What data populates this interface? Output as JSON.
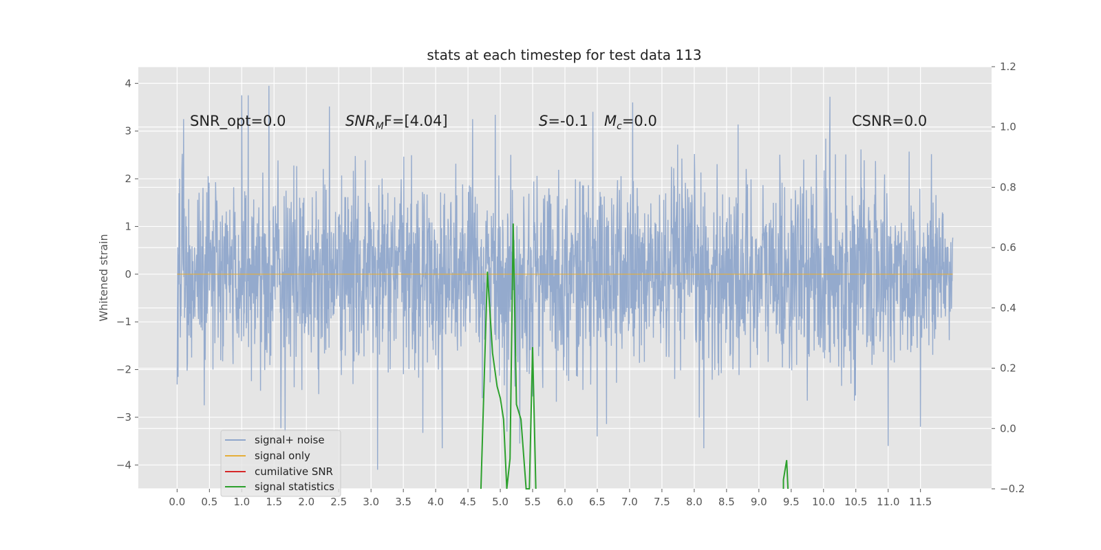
{
  "chart_data": {
    "type": "line",
    "title": "stats at each timestep for test data 113",
    "ylabel": "Whitened strain",
    "xlim": [
      -0.6,
      12.6
    ],
    "ylim": [
      -4.5,
      4.35
    ],
    "y2lim": [
      -0.2,
      1.2
    ],
    "x_ticks": [
      0.0,
      0.5,
      1.0,
      1.5,
      2.0,
      2.5,
      3.0,
      3.5,
      4.0,
      4.5,
      5.0,
      5.5,
      6.0,
      6.5,
      7.0,
      7.5,
      8.0,
      8.5,
      9.0,
      9.5,
      10.0,
      10.5,
      11.0,
      11.5
    ],
    "x_tick_labels": [
      "0.0",
      "0.5",
      "1.0",
      "1.5",
      "2.0",
      "2.5",
      "3.0",
      "3.5",
      "4.0",
      "4.5",
      "5.0",
      "5.5",
      "6.0",
      "6.5",
      "7.0",
      "7.5",
      "8.0",
      "8.5",
      "9.0",
      "9.5",
      "10.0",
      "10.5",
      "11.0",
      "11.5"
    ],
    "y_ticks": [
      -4,
      -3,
      -2,
      -1,
      0,
      1,
      2,
      3,
      4
    ],
    "y_tick_labels": [
      "−4",
      "−3",
      "−2",
      "−1",
      "0",
      "1",
      "2",
      "3",
      "4"
    ],
    "y2_ticks": [
      -0.2,
      0.0,
      0.2,
      0.4,
      0.6,
      0.8,
      1.0,
      1.2
    ],
    "y2_tick_labels": [
      "−0.2",
      "0.0",
      "0.2",
      "0.4",
      "0.6",
      "0.8",
      "1.0",
      "1.2"
    ],
    "grid": true,
    "legend_placement": "lower-left",
    "annotations": {
      "snr_opt": "SNR_opt=0.0",
      "snr_mf_main": "SNR",
      "snr_mf_sub": "M",
      "snr_mf_rest": "F=[4.04]",
      "s_main": "S",
      "s_rest": "=-0.1",
      "mc_main": "M",
      "mc_sub": "c",
      "mc_rest": "=0.0",
      "csnr": "CSNR=0.0"
    },
    "series": [
      {
        "name": "signal+ noise",
        "color": "#8fa6cb",
        "axis": "left",
        "x_range": [
          0.0,
          12.0
        ],
        "n_points": 2400,
        "summary": "whitened noise, approximately Gaussian, mean 0, std ~1, range about -4.1 to 4.0",
        "extreme_points": [
          {
            "x": 0.1,
            "y": 3.25
          },
          {
            "x": 1.0,
            "y": 3.75
          },
          {
            "x": 1.1,
            "y": 3.75
          },
          {
            "x": 1.42,
            "y": 3.95
          },
          {
            "x": 1.67,
            "y": -3.3
          },
          {
            "x": 3.1,
            "y": -4.1
          },
          {
            "x": 4.1,
            "y": -3.65
          },
          {
            "x": 5.3,
            "y": -3.55
          },
          {
            "x": 6.5,
            "y": -3.4
          },
          {
            "x": 7.05,
            "y": 3.6
          },
          {
            "x": 8.15,
            "y": -3.65
          },
          {
            "x": 10.1,
            "y": 3.72
          },
          {
            "x": 11.0,
            "y": -3.6
          },
          {
            "x": 11.5,
            "y": -3.2
          },
          {
            "x": 5.1,
            "y": -3.3
          }
        ]
      },
      {
        "name": "signal only",
        "color": "#e5ae38",
        "axis": "left",
        "x": [
          0.0,
          12.0
        ],
        "y": [
          0.0,
          0.0
        ]
      },
      {
        "name": "cumilative SNR",
        "color": "#d62728",
        "axis": "right",
        "x": [],
        "y": []
      },
      {
        "name": "signal statistics",
        "color": "#2ca02c",
        "axis": "right",
        "x": [
          4.7,
          4.8,
          4.88,
          4.95,
          5.0,
          5.05,
          5.1,
          5.15,
          5.2,
          5.25,
          5.32,
          5.4,
          5.45,
          5.5,
          5.55
        ],
        "y": [
          -0.2,
          0.52,
          0.25,
          0.14,
          0.1,
          0.03,
          -0.2,
          -0.1,
          0.68,
          0.08,
          0.03,
          -0.2,
          -0.2,
          0.27,
          -0.2
        ],
        "x2": [
          9.38,
          9.38,
          9.43,
          9.45
        ],
        "y2": [
          -0.2,
          -0.17,
          -0.105,
          -0.2
        ]
      }
    ]
  }
}
